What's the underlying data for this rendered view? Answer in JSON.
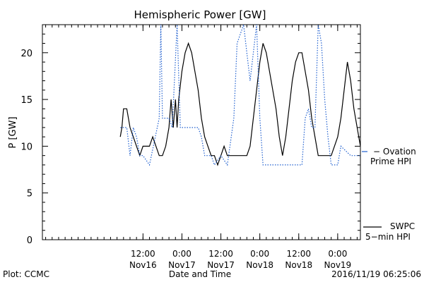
{
  "chart_data": {
    "type": "line",
    "title": "Hemispheric Power [GW]",
    "xlabel": "Date and Time",
    "ylabel": "P [GW]",
    "ylim": [
      0,
      23
    ],
    "xlim": [
      "2016-11-15 05:00",
      "2016-11-19 07:00"
    ],
    "y_ticks": [
      "0",
      "5",
      "10",
      "15",
      "20"
    ],
    "x_ticks": [
      {
        "time": "2016-11-16 12:00",
        "line1": "12:00",
        "line2": "Nov16"
      },
      {
        "time": "2016-11-17 00:00",
        "line1": "0:00",
        "line2": "Nov17"
      },
      {
        "time": "2016-11-17 12:00",
        "line1": "12:00",
        "line2": "Nov17"
      },
      {
        "time": "2016-11-18 00:00",
        "line1": "0:00",
        "line2": "Nov18"
      },
      {
        "time": "2016-11-18 12:00",
        "line1": "12:00",
        "line2": "Nov18"
      },
      {
        "time": "2016-11-19 00:00",
        "line1": "0:00",
        "line2": "Nov19"
      }
    ],
    "series": [
      {
        "name": "SWPC 5-min HPI",
        "label_lines": [
          "SWPC",
          "5−min HPI"
        ],
        "color": "#000000",
        "style": "solid",
        "points": [
          [
            "2016-11-16 05:00",
            11
          ],
          [
            "2016-11-16 05:30",
            12
          ],
          [
            "2016-11-16 06:00",
            14
          ],
          [
            "2016-11-16 07:00",
            14
          ],
          [
            "2016-11-16 08:00",
            12
          ],
          [
            "2016-11-16 09:00",
            11
          ],
          [
            "2016-11-16 10:00",
            10
          ],
          [
            "2016-11-16 11:00",
            9
          ],
          [
            "2016-11-16 12:00",
            10
          ],
          [
            "2016-11-16 13:00",
            10
          ],
          [
            "2016-11-16 14:00",
            10
          ],
          [
            "2016-11-16 15:00",
            11
          ],
          [
            "2016-11-16 16:00",
            10
          ],
          [
            "2016-11-16 17:00",
            9
          ],
          [
            "2016-11-16 18:00",
            9
          ],
          [
            "2016-11-16 19:00",
            10
          ],
          [
            "2016-11-16 20:00",
            12
          ],
          [
            "2016-11-16 20:40",
            15
          ],
          [
            "2016-11-16 21:20",
            12
          ],
          [
            "2016-11-16 22:00",
            15
          ],
          [
            "2016-11-16 22:30",
            12
          ],
          [
            "2016-11-16 23:00",
            15
          ],
          [
            "2016-11-17 00:00",
            18
          ],
          [
            "2016-11-17 01:00",
            20
          ],
          [
            "2016-11-17 02:00",
            21
          ],
          [
            "2016-11-17 03:00",
            20
          ],
          [
            "2016-11-17 04:00",
            18
          ],
          [
            "2016-11-17 05:00",
            16
          ],
          [
            "2016-11-17 06:00",
            13
          ],
          [
            "2016-11-17 07:00",
            11
          ],
          [
            "2016-11-17 08:00",
            10
          ],
          [
            "2016-11-17 09:00",
            9
          ],
          [
            "2016-11-17 10:00",
            9
          ],
          [
            "2016-11-17 11:00",
            8
          ],
          [
            "2016-11-17 12:00",
            9
          ],
          [
            "2016-11-17 13:00",
            10
          ],
          [
            "2016-11-17 14:00",
            9
          ],
          [
            "2016-11-17 15:00",
            9
          ],
          [
            "2016-11-17 16:00",
            9
          ],
          [
            "2016-11-17 17:00",
            9
          ],
          [
            "2016-11-17 18:00",
            9
          ],
          [
            "2016-11-17 19:00",
            9
          ],
          [
            "2016-11-17 20:00",
            9
          ],
          [
            "2016-11-17 21:00",
            10
          ],
          [
            "2016-11-17 22:00",
            13
          ],
          [
            "2016-11-17 23:00",
            16
          ],
          [
            "2016-11-18 00:00",
            19
          ],
          [
            "2016-11-18 01:00",
            21
          ],
          [
            "2016-11-18 02:00",
            20
          ],
          [
            "2016-11-18 03:00",
            18
          ],
          [
            "2016-11-18 04:00",
            16
          ],
          [
            "2016-11-18 05:00",
            14
          ],
          [
            "2016-11-18 06:00",
            11
          ],
          [
            "2016-11-18 07:00",
            9
          ],
          [
            "2016-11-18 08:00",
            11
          ],
          [
            "2016-11-18 09:00",
            14
          ],
          [
            "2016-11-18 10:00",
            17
          ],
          [
            "2016-11-18 11:00",
            19
          ],
          [
            "2016-11-18 12:00",
            20
          ],
          [
            "2016-11-18 13:00",
            20
          ],
          [
            "2016-11-18 14:00",
            18
          ],
          [
            "2016-11-18 15:00",
            16
          ],
          [
            "2016-11-18 16:00",
            13
          ],
          [
            "2016-11-18 17:00",
            11
          ],
          [
            "2016-11-18 18:00",
            9
          ],
          [
            "2016-11-18 19:00",
            9
          ],
          [
            "2016-11-18 20:00",
            9
          ],
          [
            "2016-11-18 21:00",
            9
          ],
          [
            "2016-11-18 22:00",
            9
          ],
          [
            "2016-11-18 23:00",
            10
          ],
          [
            "2016-11-19 00:00",
            11
          ],
          [
            "2016-11-19 01:00",
            13
          ],
          [
            "2016-11-19 02:00",
            16
          ],
          [
            "2016-11-19 03:00",
            19
          ],
          [
            "2016-11-19 04:00",
            17
          ],
          [
            "2016-11-19 05:00",
            14
          ],
          [
            "2016-11-19 06:00",
            12
          ],
          [
            "2016-11-19 07:00",
            10
          ]
        ]
      },
      {
        "name": "Ovation Prime HPI",
        "label_lines": [
          "− Ovation",
          "Prime HPI"
        ],
        "color": "#1f5fcf",
        "style": "dotted",
        "points": [
          [
            "2016-11-16 05:00",
            12
          ],
          [
            "2016-11-16 07:00",
            12
          ],
          [
            "2016-11-16 08:00",
            9
          ],
          [
            "2016-11-16 09:00",
            12
          ],
          [
            "2016-11-16 10:00",
            11
          ],
          [
            "2016-11-16 11:00",
            9
          ],
          [
            "2016-11-16 12:00",
            9
          ],
          [
            "2016-11-16 14:00",
            8
          ],
          [
            "2016-11-16 17:00",
            13
          ],
          [
            "2016-11-16 17:30",
            23
          ],
          [
            "2016-11-16 18:00",
            13
          ],
          [
            "2016-11-16 20:00",
            13
          ],
          [
            "2016-11-16 21:00",
            12
          ],
          [
            "2016-11-16 22:30",
            23
          ],
          [
            "2016-11-16 23:30",
            12
          ],
          [
            "2016-11-17 00:00",
            12
          ],
          [
            "2016-11-17 05:00",
            12
          ],
          [
            "2016-11-17 06:00",
            11
          ],
          [
            "2016-11-17 07:00",
            9
          ],
          [
            "2016-11-17 09:00",
            9
          ],
          [
            "2016-11-17 10:00",
            8
          ],
          [
            "2016-11-17 12:00",
            9
          ],
          [
            "2016-11-17 14:00",
            8
          ],
          [
            "2016-11-17 16:00",
            13
          ],
          [
            "2016-11-17 17:00",
            21
          ],
          [
            "2016-11-17 19:00",
            23
          ],
          [
            "2016-11-17 21:00",
            17
          ],
          [
            "2016-11-17 23:00",
            23
          ],
          [
            "2016-11-18 00:00",
            13
          ],
          [
            "2016-11-18 01:00",
            8
          ],
          [
            "2016-11-18 03:00",
            8
          ],
          [
            "2016-11-18 13:00",
            8
          ],
          [
            "2016-11-18 14:00",
            13
          ],
          [
            "2016-11-18 15:00",
            14
          ],
          [
            "2016-11-18 16:00",
            12
          ],
          [
            "2016-11-18 17:00",
            12
          ],
          [
            "2016-11-18 18:00",
            23
          ],
          [
            "2016-11-18 19:00",
            21
          ],
          [
            "2016-11-18 20:00",
            15
          ],
          [
            "2016-11-18 21:00",
            11
          ],
          [
            "2016-11-18 22:00",
            8
          ],
          [
            "2016-11-19 00:00",
            8
          ],
          [
            "2016-11-19 01:00",
            10
          ],
          [
            "2016-11-19 04:00",
            9
          ],
          [
            "2016-11-19 07:00",
            9
          ]
        ]
      }
    ]
  },
  "footer": {
    "left": "Plot: CCMC",
    "right": "2016/11/19 06:25:06"
  },
  "colors": {
    "swpc": "#000000",
    "ovation": "#1f5fcf",
    "axes": "#000000"
  }
}
